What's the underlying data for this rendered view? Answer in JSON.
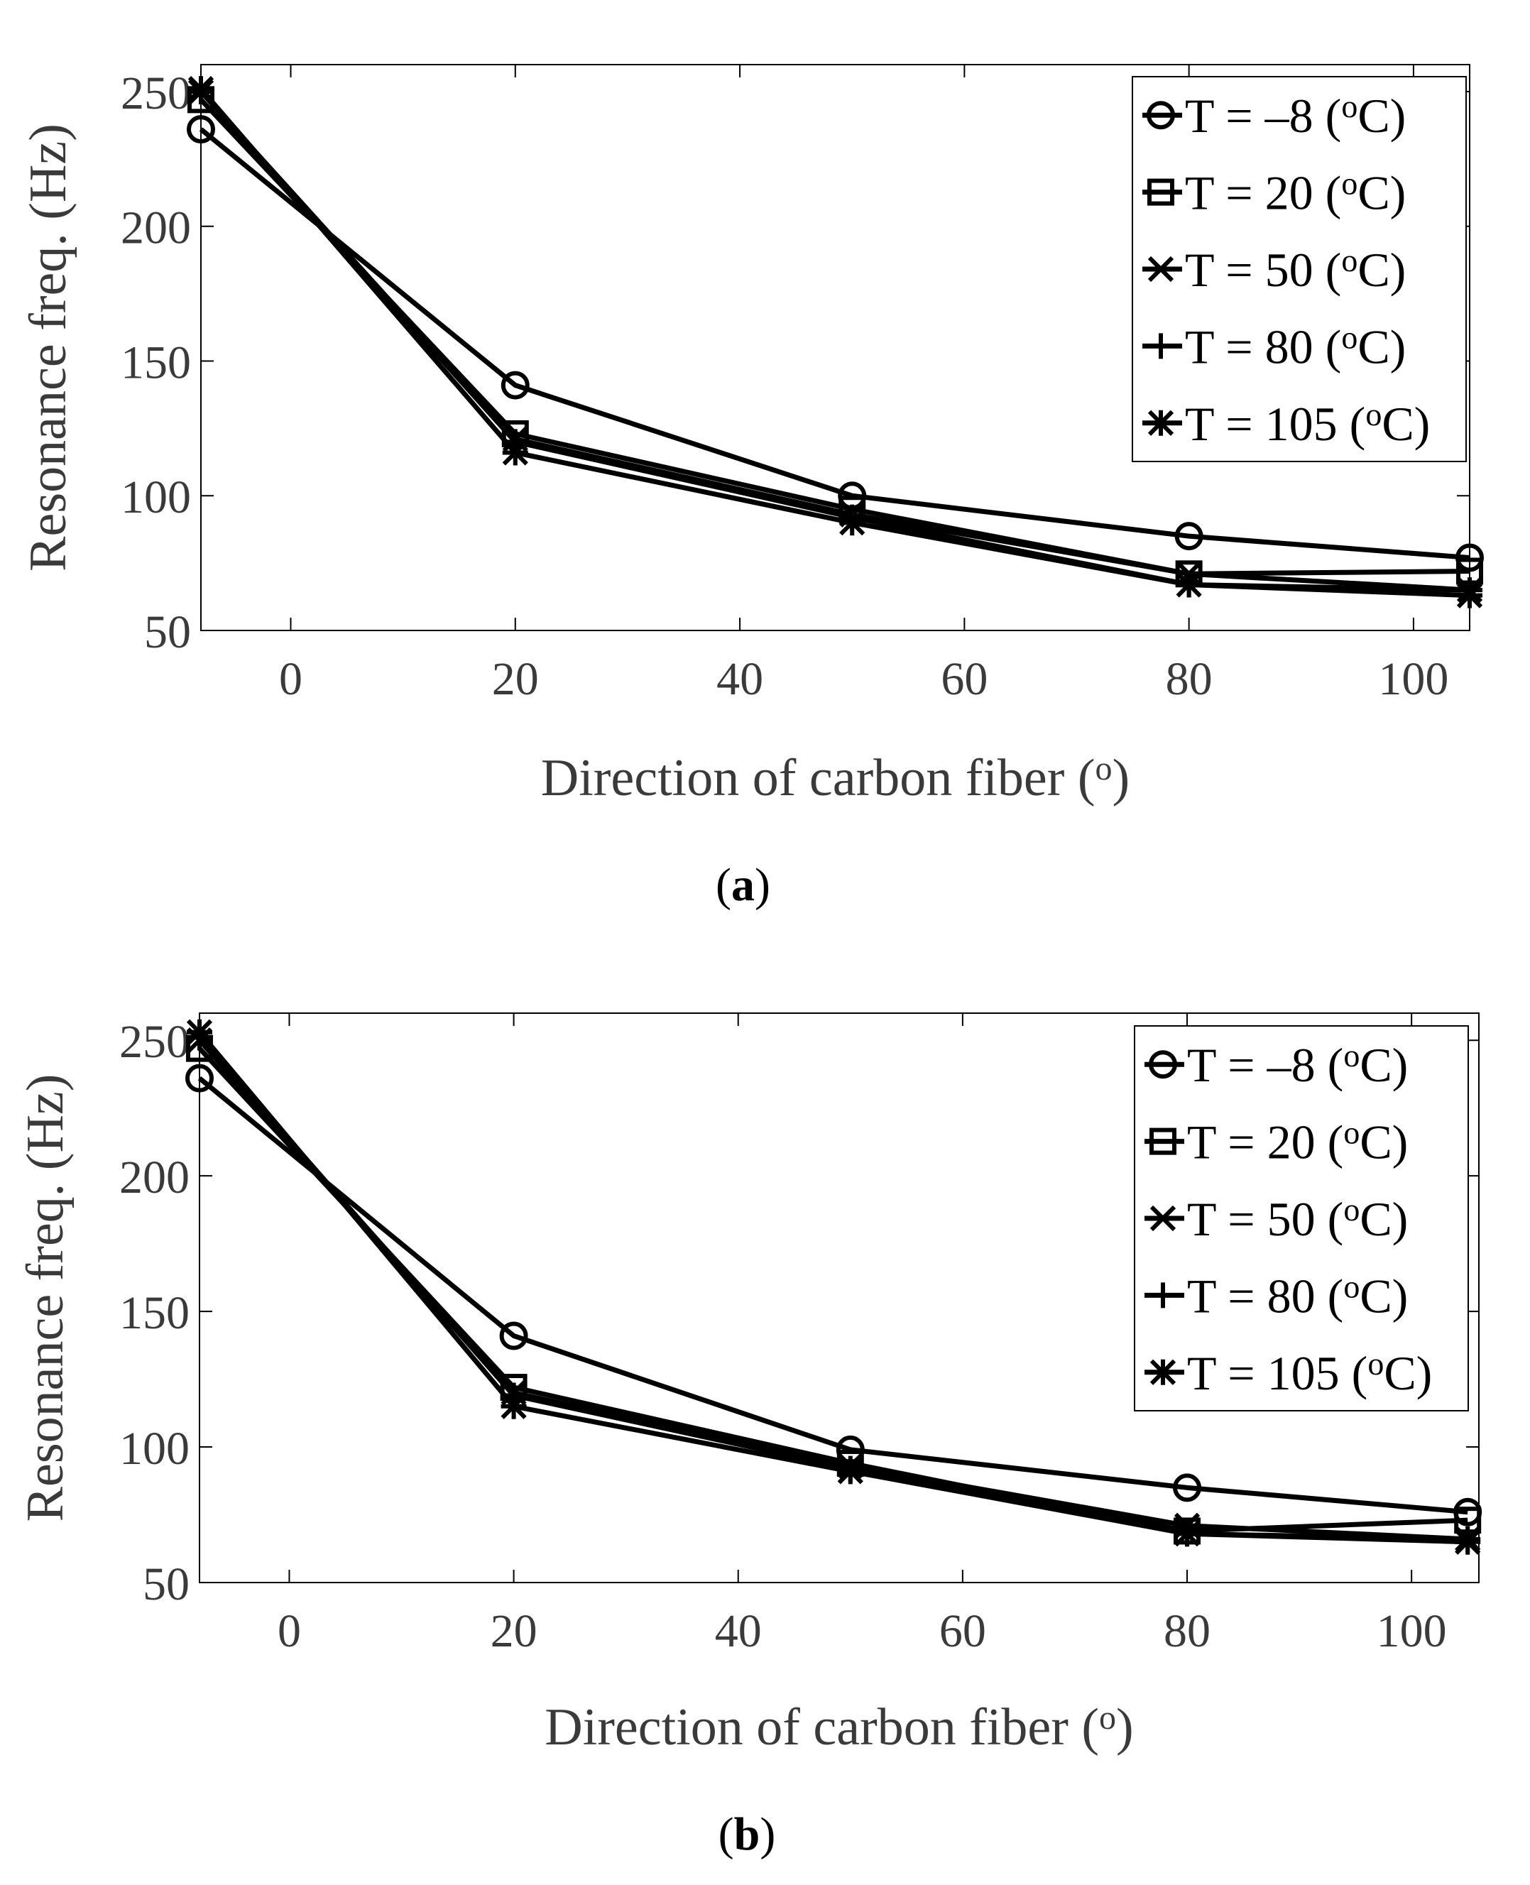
{
  "chart_data": [
    {
      "type": "line",
      "panel": "a",
      "caption_letter": "a",
      "xlabel": "Direction of carbon fiber (",
      "xlabel_sup": "o",
      "xlabel_end": ")",
      "ylabel": "Resonance freq. (Hz)",
      "xlim": [
        -8,
        105
      ],
      "ylim": [
        50,
        260
      ],
      "xticks": [
        0,
        20,
        40,
        60,
        80,
        100
      ],
      "yticks": [
        50,
        100,
        150,
        200,
        250
      ],
      "grid": false,
      "legend_position": "top-right",
      "x": [
        -8,
        20,
        50,
        80,
        105
      ],
      "series": [
        {
          "name": "T = –8 (",
          "sup": "o",
          "unit": "C)",
          "marker": "circle",
          "values": [
            236,
            141,
            100,
            85,
            77
          ]
        },
        {
          "name": "T = 20 (",
          "sup": "o",
          "unit": "C)",
          "marker": "square",
          "values": [
            247,
            123,
            95,
            71,
            72
          ]
        },
        {
          "name": "T = 50 (",
          "sup": "o",
          "unit": "C)",
          "marker": "x",
          "values": [
            250,
            121,
            93,
            71,
            65
          ]
        },
        {
          "name": "T = 80 (",
          "sup": "o",
          "unit": "C)",
          "marker": "plus",
          "values": [
            250,
            120,
            92,
            67,
            65
          ]
        },
        {
          "name": "T = 105 (",
          "sup": "o",
          "unit": "C)",
          "marker": "asterisk",
          "values": [
            251,
            116,
            90,
            67,
            63
          ]
        }
      ]
    },
    {
      "type": "line",
      "panel": "b",
      "caption_letter": "b",
      "xlabel": "Direction of carbon fiber (",
      "xlabel_sup": "o",
      "xlabel_end": ")",
      "ylabel": "Resonance freq. (Hz)",
      "xlim": [
        -8,
        106
      ],
      "ylim": [
        50,
        260
      ],
      "xticks": [
        0,
        20,
        40,
        60,
        80,
        100
      ],
      "yticks": [
        50,
        100,
        150,
        200,
        250
      ],
      "grid": false,
      "legend_position": "top-right",
      "x": [
        -8,
        20,
        50,
        80,
        105
      ],
      "series": [
        {
          "name": "T = –8 (",
          "sup": "o",
          "unit": "C)",
          "marker": "circle",
          "values": [
            236,
            141,
            99,
            85,
            76
          ]
        },
        {
          "name": "T = 20 (",
          "sup": "o",
          "unit": "C)",
          "marker": "square",
          "values": [
            247,
            122,
            94,
            69,
            73
          ]
        },
        {
          "name": "T = 50 (",
          "sup": "o",
          "unit": "C)",
          "marker": "x",
          "values": [
            250,
            120,
            93,
            71,
            66
          ]
        },
        {
          "name": "T = 80 (",
          "sup": "o",
          "unit": "C)",
          "marker": "plus",
          "values": [
            251,
            119,
            92,
            68,
            66
          ]
        },
        {
          "name": "T = 105 (",
          "sup": "o",
          "unit": "C)",
          "marker": "asterisk",
          "values": [
            253,
            115,
            91,
            68,
            65
          ]
        }
      ]
    }
  ]
}
